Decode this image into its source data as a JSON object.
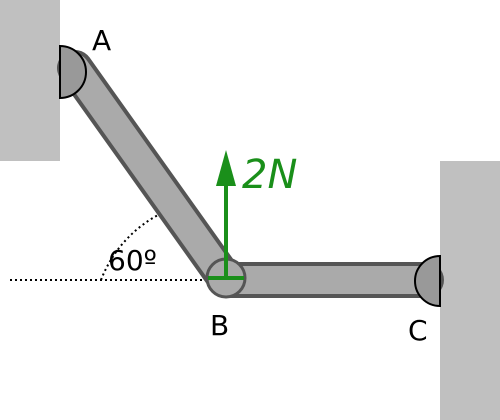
{
  "diagram": {
    "points": {
      "a": "A",
      "b": "B",
      "c": "C"
    },
    "angle_label": "60º",
    "angle_value_deg": 60,
    "force": {
      "label": "2N",
      "direction": "up",
      "color": "#1a8f1a"
    },
    "colors": {
      "wall": "#c0c0c0",
      "beam_fill": "#aaaaaa",
      "beam_stroke": "#555555",
      "hinge_fill": "#999999",
      "text": "#000000"
    }
  }
}
